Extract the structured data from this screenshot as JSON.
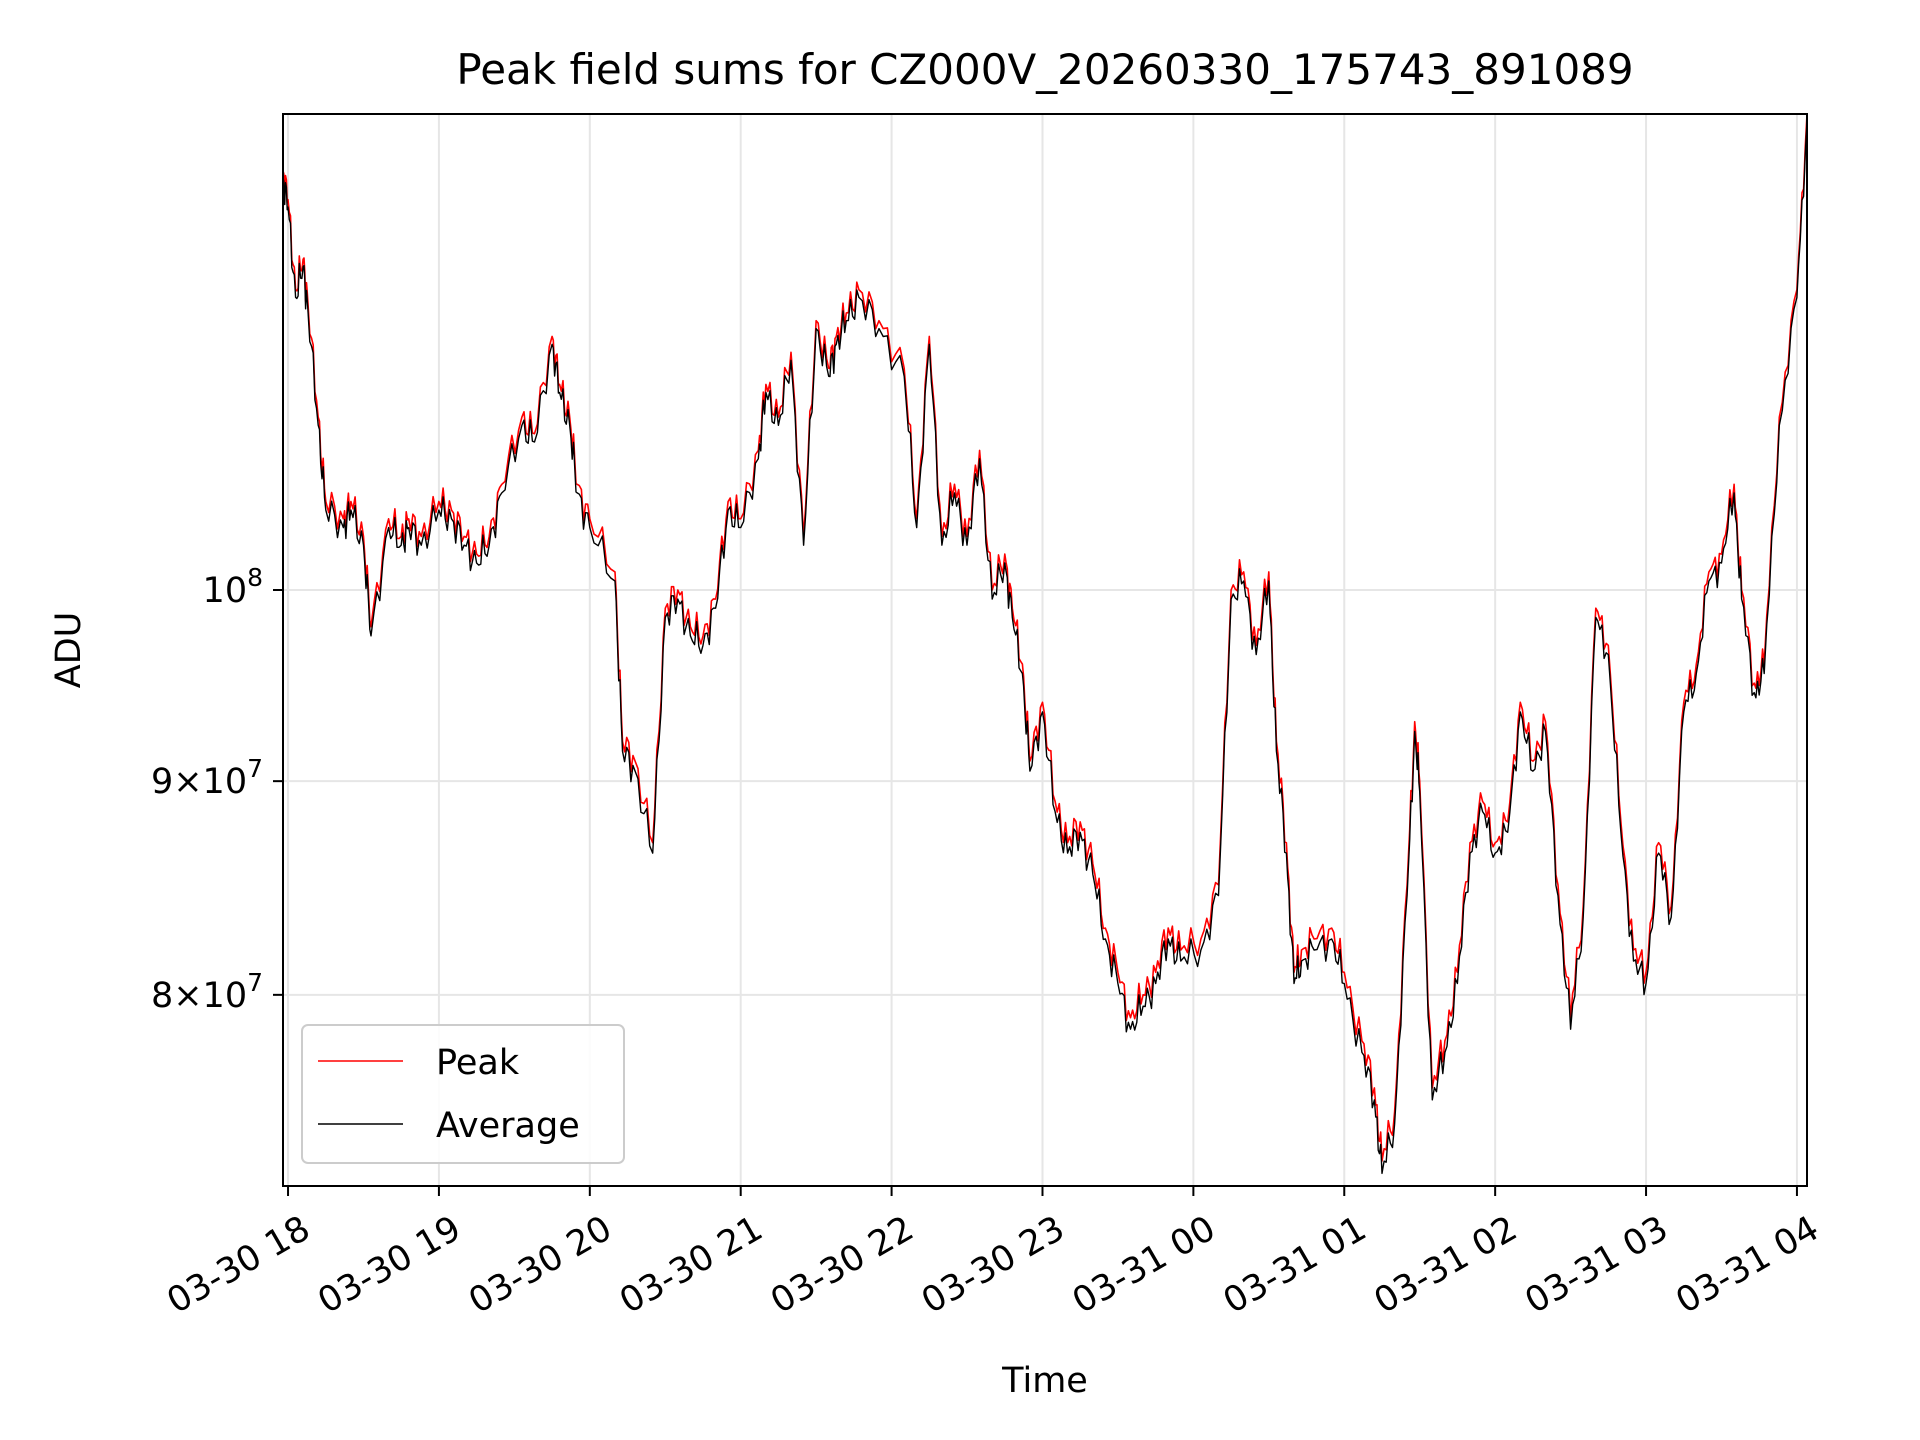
{
  "chart_data": {
    "type": "line",
    "title": "Peak field sums for CZ000V_20260330_175743_891089",
    "xlabel": "Time",
    "ylabel": "ADU",
    "yscale": "log",
    "xlim": [
      "2026-03-30 17:58",
      "2026-03-31 04:04"
    ],
    "ylim": [
      72000000,
      130000000
    ],
    "grid": true,
    "legend_position": "lower-left",
    "x_ticks": [
      "03-30 18",
      "03-30 19",
      "03-30 20",
      "03-30 21",
      "03-30 22",
      "03-30 23",
      "03-31 00",
      "03-31 01",
      "03-31 02",
      "03-31 03",
      "03-31 04"
    ],
    "y_ticks": [
      {
        "value": 80000000,
        "mantissa": "8",
        "base": "10",
        "exp": "7"
      },
      {
        "value": 90000000,
        "mantissa": "9",
        "base": "10",
        "exp": "7"
      },
      {
        "value": 100000000,
        "mantissa": "",
        "base": "10",
        "exp": "8"
      }
    ],
    "x": [
      "2026-03-30 17:58",
      "2026-03-30 18:00",
      "2026-03-30 18:03",
      "2026-03-30 18:06",
      "2026-03-30 18:08",
      "2026-03-30 18:12",
      "2026-03-30 18:15",
      "2026-03-30 18:22",
      "2026-03-30 18:25",
      "2026-03-30 18:30",
      "2026-03-30 18:33",
      "2026-03-30 18:40",
      "2026-03-30 18:45",
      "2026-03-30 18:48",
      "2026-03-30 18:53",
      "2026-03-30 19:00",
      "2026-03-30 19:05",
      "2026-03-30 19:10",
      "2026-03-30 19:15",
      "2026-03-30 19:20",
      "2026-03-30 19:25",
      "2026-03-30 19:33",
      "2026-03-30 19:38",
      "2026-03-30 19:45",
      "2026-03-30 19:48",
      "2026-03-30 19:52",
      "2026-03-30 19:55",
      "2026-03-30 20:00",
      "2026-03-30 20:10",
      "2026-03-30 20:13",
      "2026-03-30 20:18",
      "2026-03-30 20:25",
      "2026-03-30 20:30",
      "2026-03-30 20:35",
      "2026-03-30 20:40",
      "2026-03-30 20:45",
      "2026-03-30 20:50",
      "2026-03-30 20:55",
      "2026-03-30 21:00",
      "2026-03-30 21:07",
      "2026-03-30 21:10",
      "2026-03-30 21:15",
      "2026-03-30 21:20",
      "2026-03-30 21:25",
      "2026-03-30 21:30",
      "2026-03-30 21:35",
      "2026-03-30 21:38",
      "2026-03-30 21:42",
      "2026-03-30 21:47",
      "2026-03-30 21:55",
      "2026-03-30 22:05",
      "2026-03-30 22:10",
      "2026-03-30 22:15",
      "2026-03-30 22:20",
      "2026-03-30 22:25",
      "2026-03-30 22:30",
      "2026-03-30 22:35",
      "2026-03-30 22:40",
      "2026-03-30 22:45",
      "2026-03-30 22:48",
      "2026-03-30 22:52",
      "2026-03-30 22:55",
      "2026-03-30 23:00",
      "2026-03-30 23:05",
      "2026-03-30 23:10",
      "2026-03-30 23:15",
      "2026-03-30 23:20",
      "2026-03-30 23:25",
      "2026-03-30 23:30",
      "2026-03-30 23:35",
      "2026-03-30 23:40",
      "2026-03-30 23:45",
      "2026-03-30 23:50",
      "2026-03-30 23:55",
      "2026-03-31 00:03",
      "2026-03-31 00:10",
      "2026-03-31 00:15",
      "2026-03-31 00:20",
      "2026-03-31 00:25",
      "2026-03-31 00:30",
      "2026-03-31 00:33",
      "2026-03-31 00:37",
      "2026-03-31 00:40",
      "2026-03-31 00:43",
      "2026-03-31 00:48",
      "2026-03-31 00:55",
      "2026-03-31 01:00",
      "2026-03-31 01:07",
      "2026-03-31 01:12",
      "2026-03-31 01:15",
      "2026-03-31 01:20",
      "2026-03-31 01:25",
      "2026-03-31 01:28",
      "2026-03-31 01:30",
      "2026-03-31 01:35",
      "2026-03-31 01:40",
      "2026-03-31 01:45",
      "2026-03-31 01:50",
      "2026-03-31 01:55",
      "2026-03-31 02:00",
      "2026-03-31 02:05",
      "2026-03-31 02:10",
      "2026-03-31 02:15",
      "2026-03-31 02:20",
      "2026-03-31 02:25",
      "2026-03-31 02:30",
      "2026-03-31 02:35",
      "2026-03-31 02:40",
      "2026-03-31 02:45",
      "2026-03-31 02:50",
      "2026-03-31 02:55",
      "2026-03-31 03:00",
      "2026-03-31 03:05",
      "2026-03-31 03:10",
      "2026-03-31 03:15",
      "2026-03-31 03:20",
      "2026-03-31 03:25",
      "2026-03-31 03:30",
      "2026-03-31 03:35",
      "2026-03-31 03:38",
      "2026-03-31 03:43",
      "2026-03-31 03:47",
      "2026-03-31 03:53",
      "2026-03-31 04:00",
      "2026-03-31 04:04"
    ],
    "series": [
      {
        "name": "Peak",
        "color": "#ff0000",
        "values": [
          126000000,
          124000000,
          118000000,
          120000000,
          117000000,
          110000000,
          105000000,
          104000000,
          105000000,
          103000000,
          98000000,
          104000000,
          103000000,
          104000000,
          103000000,
          105000000,
          104500000,
          103000000,
          102000000,
          103000000,
          106000000,
          110000000,
          109000000,
          115000000,
          112000000,
          110000000,
          106000000,
          104000000,
          101000000,
          92000000,
          91000000,
          87000000,
          99000000,
          100000000,
          98000000,
          97500000,
          99500000,
          105000000,
          104000000,
          108000000,
          112000000,
          110000000,
          114000000,
          103000000,
          116000000,
          113000000,
          115000000,
          116500000,
          118000000,
          116000000,
          113000000,
          104000000,
          115000000,
          103000000,
          106000000,
          103000000,
          108000000,
          100000000,
          102000000,
          99000000,
          96000000,
          91000000,
          94000000,
          89000000,
          87000000,
          88000000,
          86000000,
          83000000,
          81000000,
          79000000,
          80000000,
          81000000,
          83000000,
          82000000,
          82500000,
          85000000,
          100000000,
          101000000,
          97000000,
          101000000,
          92000000,
          87000000,
          81000000,
          82000000,
          82500000,
          83000000,
          81000000,
          78000000,
          76000000,
          73000000,
          75000000,
          85000000,
          93000000,
          90000000,
          76000000,
          78000000,
          81000000,
          87000000,
          89000000,
          87000000,
          88000000,
          94000000,
          91000000,
          93000000,
          85000000,
          79000000,
          84000000,
          99000000,
          97000000,
          88000000,
          82000000,
          81000000,
          87000000,
          84000000,
          94000000,
          96000000,
          101000000,
          102000000,
          106000000,
          100000000,
          95000000,
          96000000,
          110000000,
          118000000,
          130000000
        ]
      },
      {
        "name": "Average",
        "color": "#000000",
        "values": [
          125500000,
          123500000,
          117500000,
          119500000,
          116500000,
          109500000,
          104500000,
          103500000,
          104500000,
          102500000,
          97500000,
          103500000,
          102500000,
          103500000,
          102500000,
          104500000,
          104000000,
          102500000,
          101500000,
          102500000,
          105500000,
          109500000,
          108500000,
          114500000,
          111500000,
          109500000,
          105500000,
          103500000,
          100500000,
          91500000,
          90500000,
          86500000,
          98500000,
          99500000,
          97500000,
          97000000,
          99000000,
          104500000,
          103500000,
          107500000,
          111500000,
          109500000,
          113500000,
          102500000,
          115500000,
          112500000,
          114500000,
          116000000,
          117500000,
          115500000,
          112500000,
          103500000,
          114500000,
          102500000,
          105500000,
          102500000,
          107500000,
          99500000,
          101500000,
          98500000,
          95500000,
          90500000,
          93500000,
          88500000,
          86500000,
          87500000,
          85500000,
          82500000,
          80500000,
          78500000,
          79500000,
          80500000,
          82500000,
          81500000,
          82000000,
          84500000,
          99500000,
          100500000,
          96500000,
          100500000,
          91500000,
          86500000,
          80500000,
          81500000,
          82000000,
          82500000,
          80500000,
          77500000,
          75500000,
          72500000,
          74500000,
          84500000,
          92500000,
          89500000,
          75500000,
          77500000,
          80500000,
          86500000,
          88500000,
          86500000,
          87500000,
          93500000,
          90500000,
          92500000,
          84500000,
          78500000,
          83500000,
          98500000,
          96500000,
          87500000,
          81500000,
          80500000,
          86500000,
          83500000,
          93500000,
          95500000,
          100500000,
          101500000,
          105500000,
          99500000,
          94500000,
          95500000,
          109500000,
          117500000,
          129500000
        ]
      }
    ]
  }
}
